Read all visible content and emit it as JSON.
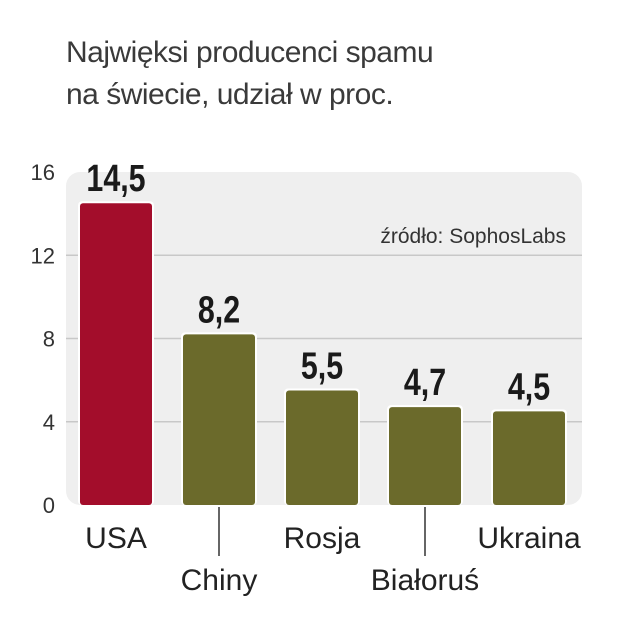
{
  "chart_data": {
    "type": "bar",
    "title": "Najwięksi producenci spamu",
    "subtitle": "na świecie, udział w proc.",
    "source": "źródło: SophosLabs",
    "categories": [
      "USA",
      "Chiny",
      "Rosja",
      "Białoruś",
      "Ukraina"
    ],
    "values": [
      14.5,
      8.2,
      5.5,
      4.7,
      4.5
    ],
    "value_labels": [
      "14,5",
      "8,2",
      "5,5",
      "4,7",
      "4,5"
    ],
    "ylim": [
      0,
      16
    ],
    "yticks": [
      0,
      4,
      8,
      12,
      16
    ],
    "grid": true,
    "colors": [
      "#a30d2b",
      "#6b6a2b",
      "#6b6a2b",
      "#6b6a2b",
      "#6b6a2b"
    ],
    "xlabel": "",
    "ylabel": ""
  }
}
